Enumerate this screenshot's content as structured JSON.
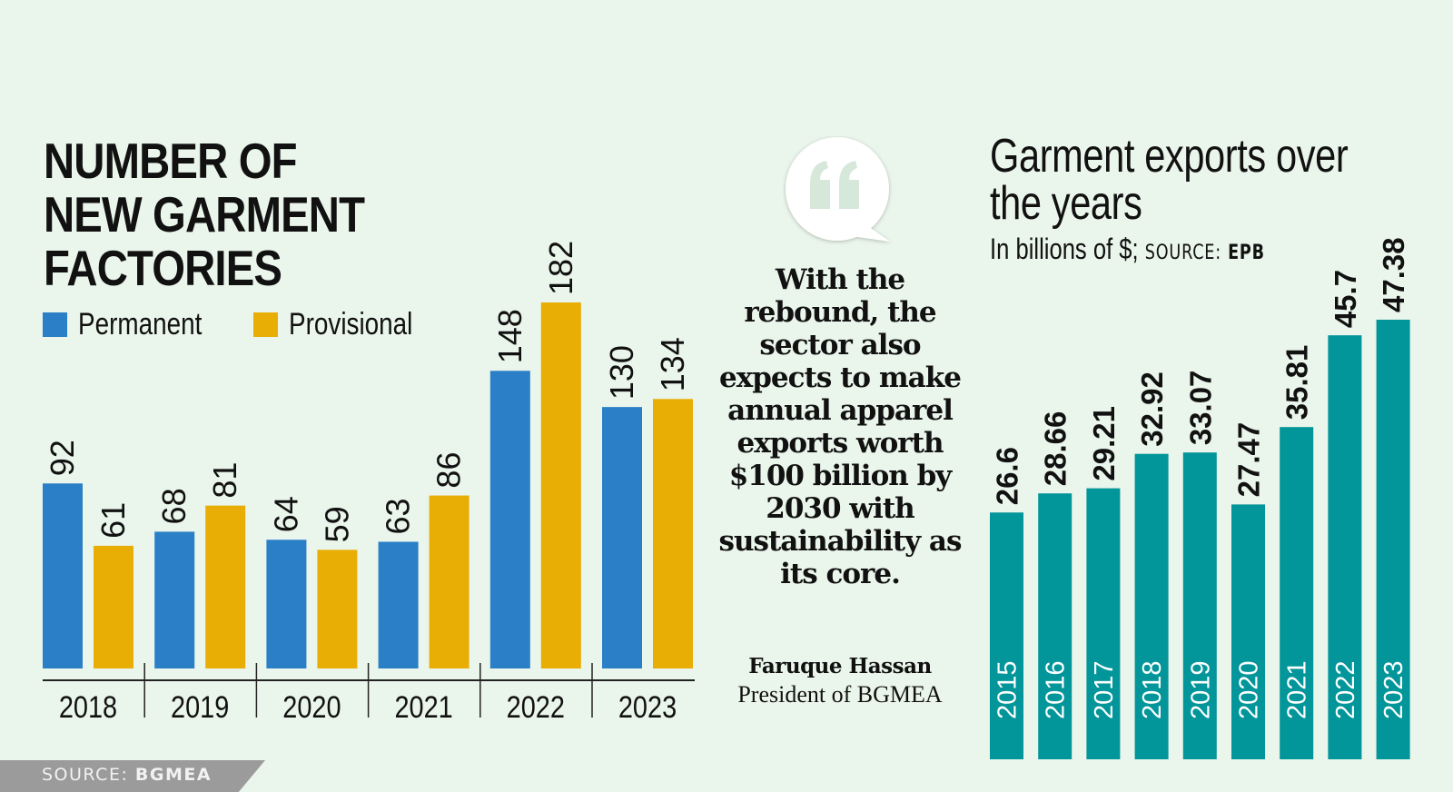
{
  "colors": {
    "background": "#eaf5eb",
    "permanent": "#2a7fc7",
    "provisional": "#e9ae06",
    "exports": "#02959a",
    "source_tag": "#9b9b9b",
    "quote_mark": "#d6e8da"
  },
  "left_chart": {
    "title": "NUMBER OF\nNEW GARMENT\nFACTORIES",
    "legend": [
      {
        "name": "Permanent",
        "color": "#2a7fc7"
      },
      {
        "name": "Provisional",
        "color": "#e9ae06"
      }
    ],
    "source_label": "SOURCE:",
    "source_name": "BGMEA"
  },
  "quote": {
    "icon": "quote-bubble-icon",
    "text": "With the rebound, the sector also expects to make annual apparel exports worth $100 billion by 2030 with sustainability as its core.",
    "author": "Faruque Hassan",
    "role": "President of BGMEA"
  },
  "right_chart": {
    "title_line1": "Garment exports over",
    "title_line2": "the years",
    "subtitle": "In billions of $;",
    "source_label": "SOURCE:",
    "source_name": "EPB"
  },
  "chart_data": [
    {
      "type": "bar",
      "title": "NUMBER OF NEW GARMENT FACTORIES",
      "xlabel": "",
      "ylabel": "",
      "categories": [
        "2018",
        "2019",
        "2020",
        "2021",
        "2022",
        "2023"
      ],
      "series": [
        {
          "name": "Permanent",
          "values": [
            92,
            68,
            64,
            63,
            148,
            130
          ]
        },
        {
          "name": "Provisional",
          "values": [
            61,
            81,
            59,
            86,
            182,
            134
          ]
        }
      ],
      "ylim": [
        0,
        182
      ],
      "grid": false,
      "legend": "top-left",
      "data_labels": true,
      "source": "SOURCE: BGMEA"
    },
    {
      "type": "bar",
      "title": "Garment exports over the years",
      "subtitle": "In billions of $; SOURCE: EPB",
      "xlabel": "",
      "ylabel": "In billions of $",
      "categories": [
        "2015",
        "2016",
        "2017",
        "2018",
        "2019",
        "2020",
        "2021",
        "2022",
        "2023"
      ],
      "values": [
        26.6,
        28.66,
        29.21,
        32.92,
        33.07,
        27.47,
        35.81,
        45.7,
        47.38
      ],
      "value_labels": [
        "26.6",
        "28.66",
        "29.21",
        "32.92",
        "33.07",
        "27.47",
        "35.81",
        "45.7",
        "47.38"
      ],
      "ylim": [
        0,
        47.38
      ],
      "grid": false,
      "legend": "none",
      "data_labels": true
    }
  ]
}
